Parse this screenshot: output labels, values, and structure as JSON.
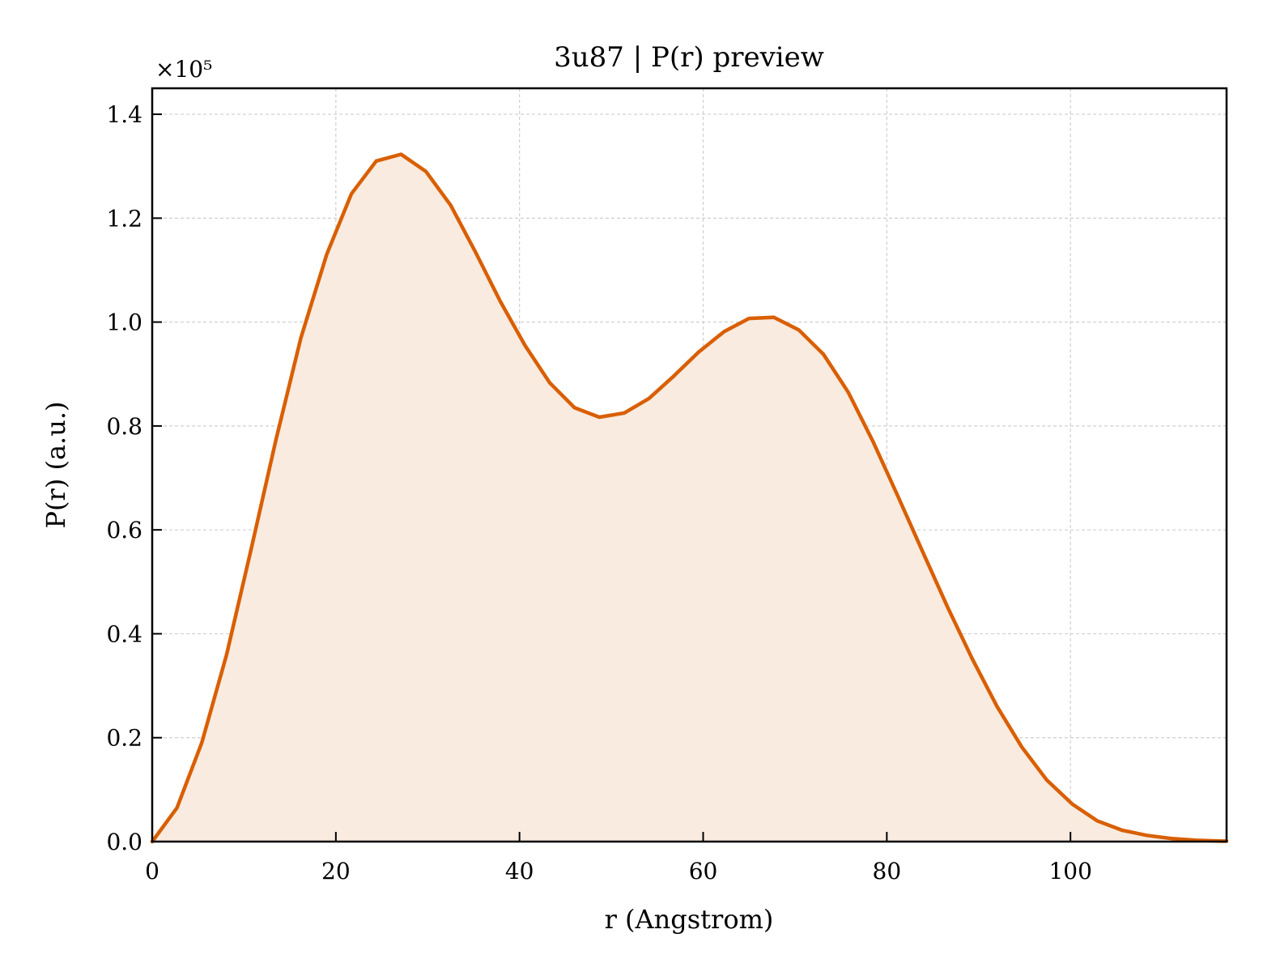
{
  "chart_data": {
    "type": "area",
    "title": "3u87 | P(r) preview",
    "xlabel": "r (Angstrom)",
    "ylabel": "P(r) (a.u.)",
    "y_scale_multiplier_label": "×10⁵",
    "y_scale_multiplier": 100000,
    "xlim": [
      0,
      117
    ],
    "ylim": [
      0,
      145000
    ],
    "x_ticks": [
      0,
      20,
      40,
      60,
      80,
      100
    ],
    "y_ticks": [
      0,
      20000,
      40000,
      60000,
      80000,
      100000,
      120000,
      140000
    ],
    "x_tick_labels": [
      "0",
      "20",
      "40",
      "60",
      "80",
      "100"
    ],
    "y_tick_labels": [
      "0.0",
      "0.2",
      "0.4",
      "0.6",
      "0.8",
      "1.0",
      "1.2",
      "1.4"
    ],
    "grid": true,
    "line_color": "#d95f02",
    "fill_color": "#f9ebe0",
    "series": [
      {
        "x": [
          0,
          2.7,
          5.4,
          8.1,
          10.8,
          13.5,
          16.2,
          19.0,
          21.7,
          24.4,
          27.1,
          29.8,
          32.5,
          35.2,
          37.9,
          40.6,
          43.3,
          46.0,
          48.7,
          51.4,
          54.1,
          56.8,
          59.5,
          62.3,
          65.0,
          67.7,
          70.4,
          73.1,
          75.8,
          78.5,
          81.2,
          83.9,
          86.6,
          89.3,
          92.0,
          94.7,
          97.4,
          100.2,
          102.9,
          105.6,
          108.3,
          111.0,
          113.7,
          116.4
        ],
        "y": [
          0,
          6500,
          19000,
          36000,
          56500,
          77500,
          97000,
          113000,
          124700,
          131000,
          132300,
          129000,
          122500,
          113500,
          104000,
          95500,
          88300,
          83500,
          81700,
          82500,
          85300,
          89600,
          94200,
          98200,
          100700,
          100900,
          98500,
          93800,
          86500,
          77000,
          66500,
          55800,
          45200,
          35200,
          26000,
          18200,
          11900,
          7200,
          4000,
          2200,
          1200,
          600,
          250,
          100
        ]
      }
    ]
  }
}
